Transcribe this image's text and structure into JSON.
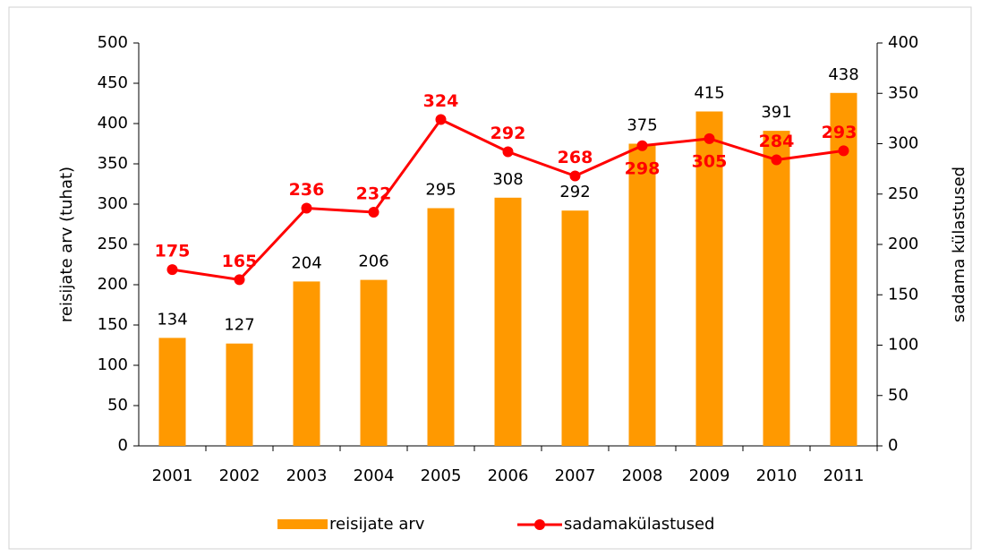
{
  "chart_data": {
    "type": "combo",
    "categories": [
      "2001",
      "2002",
      "2003",
      "2004",
      "2005",
      "2006",
      "2007",
      "2008",
      "2009",
      "2010",
      "2011"
    ],
    "series": [
      {
        "name": "reisijate arv",
        "type": "bar",
        "color": "#ff9900",
        "values": [
          134,
          127,
          204,
          206,
          295,
          308,
          292,
          375,
          415,
          391,
          438
        ]
      },
      {
        "name": "sadamakülastused",
        "type": "line",
        "axis": "y2",
        "color": "#ff0000",
        "values": [
          175,
          165,
          236,
          232,
          324,
          292,
          268,
          298,
          305,
          284,
          293
        ]
      }
    ],
    "ylabel": "reisijate arv    (tuhat)",
    "y2label": "sadama külastused",
    "ylim": [
      0,
      500
    ],
    "yticks": [
      0,
      50,
      100,
      150,
      200,
      250,
      300,
      350,
      400,
      450,
      500
    ],
    "y2lim": [
      0,
      400
    ],
    "y2ticks": [
      0,
      50,
      100,
      150,
      200,
      250,
      300,
      350,
      400
    ],
    "legend": "bottom"
  }
}
